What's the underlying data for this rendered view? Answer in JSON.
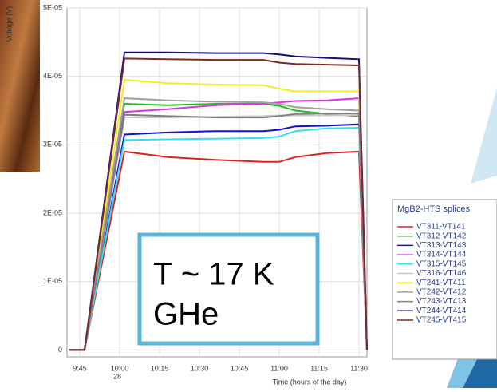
{
  "chart_data": {
    "type": "line",
    "y_label": "Voltage (V)",
    "x_label": "Time (hours of the day)",
    "day_label": "28",
    "legend_title": "MgB2-HTS splices",
    "annotations": [
      "T ~ 17 K",
      "GHe"
    ],
    "x": [
      9.68,
      9.78,
      10.03,
      10.3,
      10.6,
      10.9,
      11.0,
      11.1,
      11.3,
      11.5,
      11.55
    ],
    "xlim": [
      9.67,
      11.55
    ],
    "xticks": [
      {
        "value": 9.75,
        "label": "9:45"
      },
      {
        "value": 10.0,
        "label": "10:00"
      },
      {
        "value": 10.25,
        "label": "10:15"
      },
      {
        "value": 10.5,
        "label": "10:30"
      },
      {
        "value": 10.75,
        "label": "10:45"
      },
      {
        "value": 11.0,
        "label": "11:00"
      },
      {
        "value": 11.25,
        "label": "11:15"
      },
      {
        "value": 11.5,
        "label": "11:30"
      }
    ],
    "ylim": [
      -1e-06,
      5e-05
    ],
    "yticks": [
      0,
      {
        "value": 1e-05,
        "label": "1E-05"
      },
      {
        "value": 2e-05,
        "label": "2E-05"
      },
      {
        "value": 3e-05,
        "label": "3E-05"
      },
      {
        "value": 4e-05,
        "label": "4E-05"
      },
      {
        "value": 5e-05,
        "label": "5E-05"
      }
    ],
    "grid": true,
    "series": [
      {
        "name": "VT311-VT141",
        "color": "#e02020",
        "values": [
          0,
          0,
          2.9e-05,
          2.82e-05,
          2.78e-05,
          2.75e-05,
          2.75e-05,
          2.82e-05,
          2.88e-05,
          2.9e-05,
          0
        ]
      },
      {
        "name": "VT312-VT142",
        "color": "#20c020",
        "values": [
          0,
          0,
          3.6e-05,
          3.58e-05,
          3.6e-05,
          3.6e-05,
          3.57e-05,
          3.5e-05,
          3.45e-05,
          3.42e-05,
          0
        ]
      },
      {
        "name": "VT313-VT143",
        "color": "#1010d0",
        "values": [
          0,
          0,
          3.15e-05,
          3.18e-05,
          3.2e-05,
          3.2e-05,
          3.22e-05,
          3.27e-05,
          3.28e-05,
          3.3e-05,
          0
        ]
      },
      {
        "name": "VT314-VT144",
        "color": "#e030e0",
        "values": [
          0,
          0,
          3.48e-05,
          3.52e-05,
          3.58e-05,
          3.6e-05,
          3.62e-05,
          3.64e-05,
          3.65e-05,
          3.68e-05,
          0
        ]
      },
      {
        "name": "VT315-VT145",
        "color": "#30e0f0",
        "values": [
          0,
          0,
          3.07e-05,
          3.08e-05,
          3.09e-05,
          3.1e-05,
          3.12e-05,
          3.2e-05,
          3.24e-05,
          3.25e-05,
          0
        ]
      },
      {
        "name": "VT316-VT146",
        "color": "#c8c8c8",
        "values": [
          0,
          0,
          3.4e-05,
          3.4e-05,
          3.41e-05,
          3.42e-05,
          3.43e-05,
          3.43e-05,
          3.43e-05,
          3.44e-05,
          0
        ]
      },
      {
        "name": "VT241-VT411",
        "color": "#f0f020",
        "values": [
          0,
          0,
          3.95e-05,
          3.9e-05,
          3.88e-05,
          3.87e-05,
          3.82e-05,
          3.78e-05,
          3.78e-05,
          3.78e-05,
          0
        ]
      },
      {
        "name": "VT242-VT412",
        "color": "#a0a0a0",
        "values": [
          0,
          0,
          3.68e-05,
          3.65e-05,
          3.63e-05,
          3.62e-05,
          3.6e-05,
          3.55e-05,
          3.52e-05,
          3.5e-05,
          0
        ]
      },
      {
        "name": "VT243-VT413",
        "color": "#808080",
        "values": [
          0,
          0,
          3.44e-05,
          3.42e-05,
          3.4e-05,
          3.4e-05,
          3.42e-05,
          3.45e-05,
          3.46e-05,
          3.46e-05,
          0
        ]
      },
      {
        "name": "VT244-VT414",
        "color": "#101080",
        "values": [
          0,
          0,
          4.35e-05,
          4.35e-05,
          4.34e-05,
          4.34e-05,
          4.32e-05,
          4.29e-05,
          4.27e-05,
          4.25e-05,
          0
        ]
      },
      {
        "name": "VT245-VT415",
        "color": "#7a2a2a",
        "values": [
          0,
          0,
          4.26e-05,
          4.25e-05,
          4.24e-05,
          4.24e-05,
          4.2e-05,
          4.18e-05,
          4.17e-05,
          4.16e-05,
          0
        ]
      }
    ]
  }
}
